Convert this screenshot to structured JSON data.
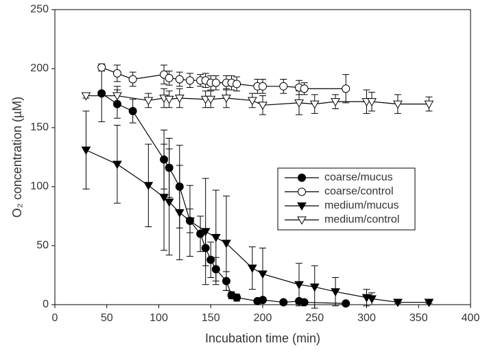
{
  "chart_data": {
    "type": "scatter",
    "xlabel": "Incubation time (min)",
    "ylabel": "O₂ concentration (µM)",
    "xlim": [
      0,
      400
    ],
    "xticks": [
      0,
      50,
      100,
      150,
      200,
      250,
      300,
      350,
      400
    ],
    "ylim": [
      0,
      250
    ],
    "yticks": [
      0,
      50,
      100,
      150,
      200,
      250
    ],
    "grid": false,
    "legend": "right",
    "series": [
      {
        "name": "coarse/mucus",
        "color": "#000000",
        "marker": "circle",
        "filled": true,
        "x": [
          45,
          60,
          75,
          105,
          110,
          120,
          130,
          140,
          145,
          150,
          155,
          165,
          170,
          175,
          195,
          200,
          220,
          235,
          240,
          280
        ],
        "values": [
          179,
          170,
          164,
          123,
          116,
          100,
          71,
          60,
          48,
          38,
          30,
          20,
          8,
          6,
          3,
          4,
          2,
          3,
          2,
          1
        ],
        "errors": [
          24,
          12,
          10,
          25,
          25,
          35,
          10,
          15,
          15,
          15,
          10,
          8,
          3,
          3,
          2,
          2,
          1,
          2,
          1,
          1
        ]
      },
      {
        "name": "coarse/control",
        "color": "#000000",
        "marker": "circle",
        "filled": false,
        "x": [
          45,
          60,
          75,
          105,
          110,
          120,
          130,
          140,
          145,
          150,
          155,
          165,
          170,
          175,
          195,
          200,
          220,
          235,
          240,
          280
        ],
        "values": [
          201,
          196,
          191,
          195,
          192,
          191,
          190,
          190,
          190,
          188,
          188,
          188,
          188,
          187,
          185,
          185,
          185,
          184,
          183,
          183
        ],
        "errors": [
          3,
          7,
          6,
          8,
          6,
          6,
          6,
          5,
          6,
          6,
          6,
          6,
          6,
          6,
          6,
          6,
          6,
          6,
          5,
          12
        ]
      },
      {
        "name": "medium/mucus",
        "color": "#000000",
        "marker": "triangle-down",
        "filled": true,
        "x": [
          30,
          60,
          90,
          105,
          110,
          120,
          130,
          145,
          155,
          165,
          190,
          200,
          235,
          250,
          270,
          300,
          305,
          330,
          360
        ],
        "values": [
          131,
          119,
          101,
          91,
          87,
          78,
          71,
          62,
          57,
          52,
          31,
          26,
          17,
          15,
          11,
          6,
          5,
          2,
          2
        ],
        "errors": [
          33,
          33,
          35,
          45,
          45,
          40,
          30,
          45,
          40,
          40,
          18,
          22,
          18,
          18,
          12,
          7,
          5,
          1,
          1
        ]
      },
      {
        "name": "medium/control",
        "color": "#000000",
        "marker": "triangle-down",
        "filled": false,
        "x": [
          30,
          60,
          90,
          105,
          110,
          120,
          145,
          150,
          165,
          190,
          200,
          235,
          250,
          270,
          300,
          305,
          330,
          360
        ],
        "values": [
          177,
          177,
          173,
          175,
          174,
          175,
          174,
          174,
          175,
          173,
          169,
          171,
          170,
          172,
          172,
          172,
          170,
          170
        ],
        "errors": [
          2,
          8,
          6,
          8,
          7,
          8,
          7,
          7,
          8,
          6,
          8,
          10,
          8,
          6,
          10,
          8,
          8,
          6
        ]
      }
    ]
  }
}
